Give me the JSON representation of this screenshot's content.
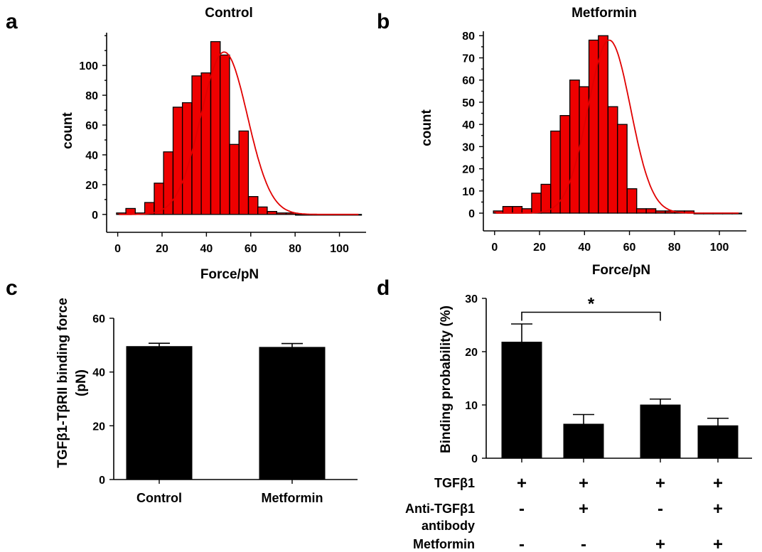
{
  "chart_data": [
    {
      "panel": "a",
      "type": "bar",
      "title": "Control",
      "xlabel": "Force/pN",
      "ylabel": "count",
      "xlim": [
        -5,
        112
      ],
      "ylim": [
        -12,
        122
      ],
      "xticks": [
        0,
        20,
        40,
        60,
        80,
        100
      ],
      "yticks": [
        0,
        20,
        40,
        60,
        80,
        100
      ],
      "bin_width": 4.25,
      "bin_centers": [
        1.6,
        5.8,
        10.1,
        14.3,
        18.6,
        22.8,
        27.1,
        31.3,
        35.6,
        39.8,
        44.1,
        48.3,
        52.6,
        56.8,
        61.1,
        65.3,
        69.6,
        73.8,
        78.1,
        82.3,
        86.6,
        90.8,
        95.1,
        99.3,
        103.6,
        107.8
      ],
      "counts": [
        1,
        4,
        1,
        8,
        21,
        42,
        72,
        75,
        93,
        95,
        116,
        107,
        47,
        56,
        12,
        5,
        2,
        1,
        1,
        0,
        0,
        0,
        0,
        0,
        0,
        0
      ],
      "fit": {
        "type": "gaussian",
        "mean": 48,
        "sd": 10.5,
        "peak": 109
      }
    },
    {
      "panel": "b",
      "type": "bar",
      "title": "Metformin",
      "xlabel": "Force/pN",
      "ylabel": "count",
      "xlim": [
        -5,
        112
      ],
      "ylim": [
        -8,
        82
      ],
      "xticks": [
        0,
        20,
        40,
        60,
        80,
        100
      ],
      "yticks": [
        0,
        10,
        20,
        30,
        40,
        50,
        60,
        70,
        80
      ],
      "bin_width": 4.25,
      "bin_centers": [
        1.6,
        5.8,
        10.1,
        14.3,
        18.6,
        22.8,
        27.1,
        31.3,
        35.6,
        39.8,
        44.1,
        48.3,
        52.6,
        56.8,
        61.1,
        65.3,
        69.6,
        73.8,
        78.1,
        82.3,
        86.6,
        90.8,
        95.1,
        99.3,
        103.6,
        107.8
      ],
      "counts": [
        1,
        3,
        3,
        2,
        9,
        13,
        37,
        44,
        60,
        57,
        78,
        80,
        48,
        40,
        11,
        2,
        2,
        1,
        1,
        1,
        1,
        0,
        0,
        0,
        0,
        0
      ],
      "fit": {
        "type": "gaussian",
        "mean": 51,
        "sd": 9.5,
        "peak": 78
      }
    },
    {
      "panel": "c",
      "type": "bar",
      "categories": [
        "Control",
        "Metformin"
      ],
      "values": [
        49.5,
        49.2
      ],
      "errors": [
        1.2,
        1.4
      ],
      "ylabel_line1": "TGFβ1-TβRII binding force",
      "ylabel_line2": "(pN)",
      "ylim": [
        0,
        60
      ],
      "yticks": [
        0,
        20,
        40,
        60
      ]
    },
    {
      "panel": "d",
      "type": "bar",
      "values": [
        21.8,
        6.4,
        10.0,
        6.1
      ],
      "errors": [
        3.4,
        1.8,
        1.1,
        1.4
      ],
      "ylabel": "Binding probability (%)",
      "ylim": [
        0,
        30
      ],
      "yticks": [
        0,
        10,
        20,
        30
      ],
      "significance": {
        "from": 0,
        "to": 2,
        "label": "*"
      },
      "conditions": [
        {
          "label": "TGFβ1",
          "signs": [
            "+",
            "+",
            "+",
            "+"
          ]
        },
        {
          "label_line1": "Anti-TGFβ1",
          "label_line2": "antibody",
          "signs": [
            "-",
            "+",
            "-",
            "+"
          ]
        },
        {
          "label": "Metformin",
          "signs": [
            "-",
            "-",
            "+",
            "+"
          ]
        }
      ]
    }
  ]
}
